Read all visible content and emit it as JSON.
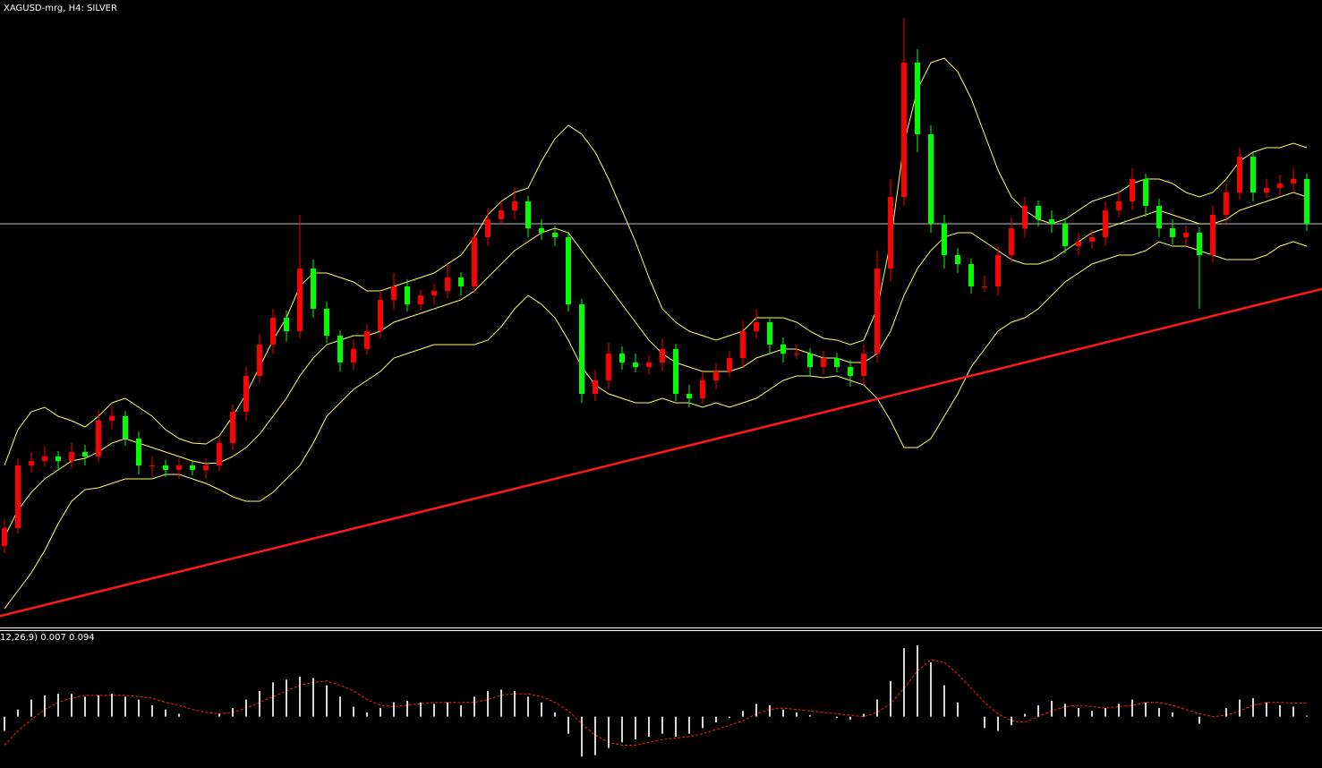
{
  "chart_data": {
    "type": "candlestick",
    "title": "XAGUSD-mrg, H4:  SILVER",
    "ylim": [
      0,
      700
    ],
    "up_color": "#ff0000",
    "down_color": "#00ff00",
    "open": [
      90,
      110,
      180,
      185,
      190,
      185,
      195,
      190,
      230,
      235,
      210,
      180,
      180,
      175,
      180,
      175,
      180,
      205,
      240,
      280,
      315,
      345,
      330,
      400,
      355,
      325,
      295,
      310,
      330,
      365,
      380,
      360,
      370,
      375,
      390,
      380,
      435,
      455,
      465,
      475,
      445,
      440,
      435,
      360,
      260,
      275,
      305,
      295,
      290,
      295,
      310,
      260,
      255,
      275,
      285,
      300,
      330,
      340,
      315,
      305,
      305,
      290,
      300,
      290,
      280,
      305,
      400,
      480,
      630,
      550,
      450,
      415,
      405,
      380,
      380,
      415,
      445,
      470,
      455,
      450,
      425,
      430,
      435,
      465,
      475,
      500,
      470,
      445,
      435,
      440,
      415,
      460,
      485,
      525,
      485,
      490,
      495,
      500
    ],
    "high": [
      120,
      188,
      195,
      202,
      196,
      205,
      203,
      242,
      245,
      241,
      218,
      190,
      186,
      188,
      186,
      188,
      211,
      248,
      290,
      327,
      355,
      353,
      460,
      410,
      363,
      331,
      320,
      338,
      375,
      395,
      388,
      376,
      383,
      405,
      396,
      445,
      467,
      475,
      490,
      481,
      455,
      448,
      441,
      366,
      287,
      317,
      313,
      305,
      303,
      322,
      316,
      270,
      285,
      295,
      308,
      342,
      355,
      346,
      323,
      315,
      311,
      308,
      306,
      298,
      315,
      420,
      500,
      680,
      645,
      560,
      460,
      423,
      411,
      392,
      425,
      457,
      480,
      476,
      465,
      456,
      440,
      443,
      475,
      487,
      512,
      506,
      478,
      455,
      448,
      446,
      470,
      495,
      535,
      531,
      500,
      505,
      512,
      506
    ],
    "low": [
      82,
      104,
      172,
      179,
      175,
      177,
      180,
      184,
      220,
      202,
      170,
      168,
      167,
      165,
      169,
      165,
      174,
      197,
      230,
      272,
      305,
      318,
      322,
      345,
      317,
      285,
      287,
      304,
      322,
      355,
      352,
      354,
      360,
      367,
      370,
      372,
      425,
      449,
      455,
      435,
      432,
      425,
      352,
      250,
      252,
      265,
      287,
      284,
      282,
      285,
      252,
      245,
      249,
      265,
      279,
      290,
      322,
      305,
      295,
      299,
      280,
      282,
      284,
      268,
      270,
      295,
      385,
      470,
      530,
      440,
      400,
      395,
      372,
      374,
      370,
      407,
      435,
      447,
      440,
      417,
      415,
      422,
      425,
      457,
      465,
      458,
      435,
      427,
      425,
      355,
      407,
      450,
      477,
      475,
      479,
      482,
      487,
      442
    ],
    "close": [
      110,
      180,
      185,
      190,
      185,
      195,
      190,
      230,
      235,
      210,
      180,
      180,
      175,
      180,
      175,
      180,
      205,
      240,
      280,
      315,
      345,
      330,
      400,
      355,
      325,
      295,
      310,
      330,
      365,
      380,
      360,
      370,
      375,
      390,
      380,
      435,
      455,
      465,
      475,
      445,
      440,
      435,
      360,
      260,
      275,
      305,
      295,
      290,
      295,
      310,
      260,
      255,
      275,
      285,
      300,
      330,
      340,
      315,
      305,
      305,
      290,
      300,
      290,
      280,
      305,
      400,
      480,
      630,
      550,
      450,
      415,
      405,
      380,
      380,
      415,
      445,
      470,
      455,
      450,
      425,
      430,
      435,
      465,
      475,
      500,
      470,
      445,
      435,
      440,
      415,
      460,
      485,
      525,
      485,
      490,
      495,
      500,
      450
    ],
    "bands": {
      "color": "#ffff66",
      "upper": [
        180,
        220,
        240,
        245,
        235,
        230,
        223,
        235,
        250,
        255,
        245,
        235,
        220,
        210,
        205,
        204,
        213,
        235,
        260,
        290,
        320,
        345,
        380,
        395,
        395,
        390,
        385,
        375,
        375,
        380,
        385,
        390,
        395,
        405,
        415,
        435,
        460,
        475,
        485,
        490,
        520,
        545,
        560,
        550,
        530,
        500,
        465,
        430,
        390,
        355,
        340,
        330,
        325,
        320,
        325,
        330,
        345,
        345,
        345,
        340,
        330,
        322,
        320,
        315,
        320,
        355,
        430,
        540,
        600,
        630,
        635,
        620,
        590,
        550,
        510,
        480,
        465,
        455,
        450,
        455,
        465,
        475,
        480,
        485,
        495,
        500,
        500,
        495,
        485,
        480,
        485,
        500,
        520,
        530,
        535,
        535,
        540,
        535
      ],
      "middle": [
        100,
        130,
        150,
        165,
        175,
        185,
        188,
        195,
        205,
        210,
        205,
        200,
        195,
        190,
        185,
        182,
        183,
        190,
        200,
        215,
        235,
        255,
        280,
        300,
        315,
        320,
        325,
        325,
        330,
        340,
        345,
        350,
        355,
        360,
        365,
        375,
        390,
        405,
        420,
        430,
        440,
        445,
        440,
        420,
        400,
        380,
        360,
        340,
        320,
        305,
        295,
        290,
        285,
        285,
        285,
        290,
        300,
        305,
        310,
        310,
        305,
        300,
        300,
        295,
        295,
        305,
        330,
        370,
        400,
        420,
        435,
        440,
        440,
        430,
        420,
        410,
        405,
        405,
        410,
        420,
        430,
        440,
        445,
        450,
        455,
        460,
        465,
        460,
        455,
        450,
        450,
        455,
        465,
        470,
        475,
        480,
        485,
        480
      ],
      "lower": [
        20,
        40,
        60,
        85,
        115,
        140,
        153,
        155,
        160,
        165,
        165,
        165,
        170,
        170,
        165,
        160,
        153,
        145,
        140,
        140,
        150,
        165,
        180,
        205,
        235,
        250,
        265,
        275,
        285,
        300,
        305,
        310,
        315,
        315,
        315,
        315,
        320,
        335,
        355,
        370,
        360,
        345,
        320,
        290,
        270,
        260,
        255,
        250,
        250,
        255,
        250,
        250,
        245,
        250,
        245,
        250,
        255,
        265,
        275,
        280,
        280,
        278,
        280,
        275,
        270,
        255,
        230,
        200,
        200,
        210,
        235,
        260,
        290,
        310,
        330,
        340,
        345,
        355,
        370,
        385,
        395,
        405,
        410,
        415,
        415,
        420,
        430,
        425,
        425,
        420,
        415,
        410,
        410,
        410,
        415,
        425,
        430,
        425
      ]
    },
    "hline": {
      "value": 450,
      "color": "#c0c0c0"
    },
    "trendline": {
      "start": [
        0,
        13
      ],
      "end": [
        97,
        373
      ],
      "color": "#ff1a1a"
    },
    "macd": {
      "label": "12,26,9) 0.007 0.094",
      "ylim": [
        -0.36,
        0.6
      ],
      "hist_color": "#d8d8d8",
      "signal_color": "#ff2020",
      "histogram": [
        -0.1,
        0.05,
        0.12,
        0.15,
        0.16,
        0.16,
        0.14,
        0.15,
        0.16,
        0.14,
        0.12,
        0.08,
        0.05,
        0.02,
        0.0,
        0.0,
        0.02,
        0.06,
        0.12,
        0.18,
        0.24,
        0.26,
        0.28,
        0.27,
        0.22,
        0.14,
        0.07,
        0.03,
        0.06,
        0.1,
        0.11,
        0.1,
        0.09,
        0.1,
        0.08,
        0.14,
        0.18,
        0.19,
        0.18,
        0.14,
        0.1,
        0.03,
        -0.12,
        -0.28,
        -0.27,
        -0.22,
        -0.18,
        -0.16,
        -0.14,
        -0.12,
        -0.14,
        -0.12,
        -0.08,
        -0.04,
        -0.01,
        0.04,
        0.09,
        0.08,
        0.05,
        0.03,
        0.01,
        0.0,
        -0.01,
        -0.02,
        0.02,
        0.12,
        0.25,
        0.48,
        0.5,
        0.38,
        0.22,
        0.1,
        0.0,
        -0.08,
        -0.1,
        -0.06,
        0.02,
        0.08,
        0.11,
        0.09,
        0.06,
        0.04,
        0.06,
        0.09,
        0.12,
        0.1,
        0.06,
        0.03,
        0.0,
        -0.05,
        0.0,
        0.06,
        0.12,
        0.13,
        0.1,
        0.08,
        0.07,
        0.007
      ],
      "signal": [
        -0.2,
        -0.1,
        -0.02,
        0.05,
        0.1,
        0.13,
        0.15,
        0.15,
        0.15,
        0.15,
        0.14,
        0.13,
        0.1,
        0.08,
        0.05,
        0.03,
        0.02,
        0.03,
        0.06,
        0.1,
        0.14,
        0.18,
        0.22,
        0.24,
        0.25,
        0.22,
        0.18,
        0.12,
        0.08,
        0.07,
        0.08,
        0.09,
        0.1,
        0.1,
        0.1,
        0.1,
        0.12,
        0.15,
        0.16,
        0.16,
        0.14,
        0.1,
        0.04,
        -0.05,
        -0.13,
        -0.18,
        -0.2,
        -0.2,
        -0.18,
        -0.16,
        -0.15,
        -0.14,
        -0.12,
        -0.09,
        -0.06,
        -0.03,
        0.02,
        0.05,
        0.06,
        0.05,
        0.04,
        0.03,
        0.02,
        0.01,
        0.0,
        0.03,
        0.09,
        0.2,
        0.32,
        0.4,
        0.38,
        0.3,
        0.2,
        0.1,
        0.02,
        -0.03,
        -0.04,
        0.0,
        0.04,
        0.07,
        0.08,
        0.07,
        0.06,
        0.07,
        0.08,
        0.1,
        0.1,
        0.08,
        0.05,
        0.02,
        0.0,
        0.01,
        0.04,
        0.08,
        0.1,
        0.1,
        0.095,
        0.094
      ]
    }
  }
}
